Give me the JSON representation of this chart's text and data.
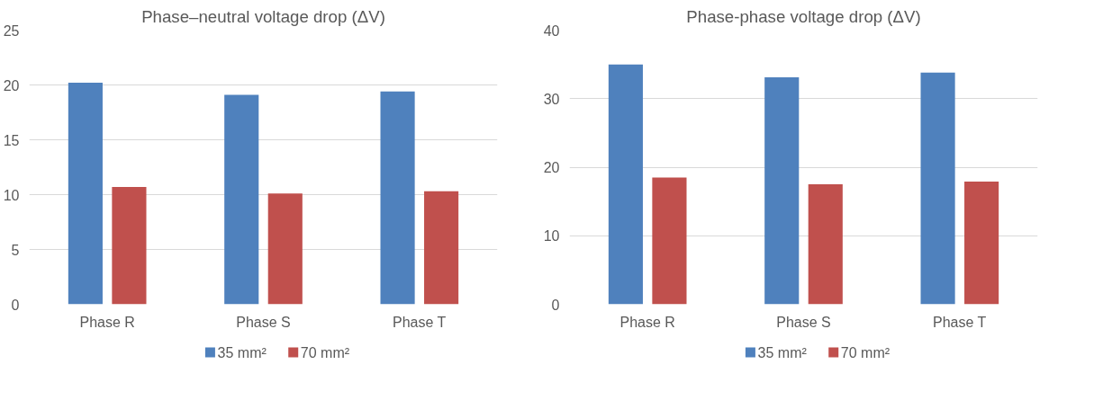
{
  "chart_data": [
    {
      "type": "bar",
      "title": "Phase–neutral voltage drop (ΔV)",
      "categories": [
        "Phase R",
        "Phase S",
        "Phase T"
      ],
      "series": [
        {
          "name": "35 mm²",
          "color": "#4f81bd",
          "values": [
            20.2,
            19.1,
            19.4
          ]
        },
        {
          "name": "70 mm²",
          "color": "#c0504d",
          "values": [
            10.7,
            10.1,
            10.3
          ]
        }
      ],
      "ylim": [
        0,
        25
      ],
      "yticks": [
        0,
        5,
        10,
        15,
        20,
        25
      ],
      "grid": "y",
      "legend": "bottom"
    },
    {
      "type": "bar",
      "title": "Phase-phase voltage drop (ΔV)",
      "categories": [
        "Phase R",
        "Phase S",
        "Phase T"
      ],
      "series": [
        {
          "name": "35 mm²",
          "color": "#4f81bd",
          "values": [
            35.0,
            33.1,
            33.8
          ]
        },
        {
          "name": "70 mm²",
          "color": "#c0504d",
          "values": [
            18.5,
            17.5,
            17.9
          ]
        }
      ],
      "ylim": [
        0,
        40
      ],
      "yticks": [
        0,
        10,
        20,
        30,
        40
      ],
      "grid": "y",
      "legend": "bottom"
    }
  ]
}
